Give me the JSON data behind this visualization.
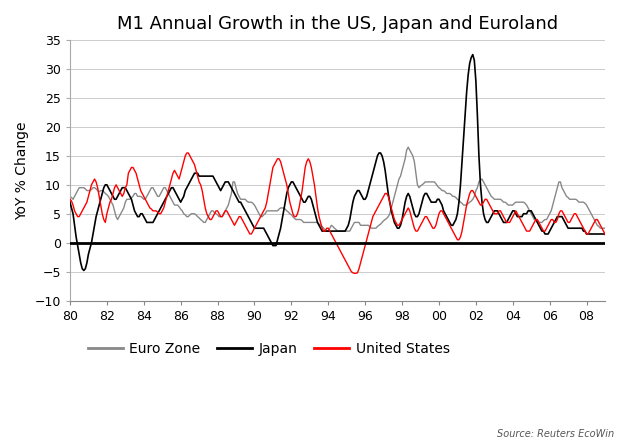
{
  "title": "M1 Annual Growth in the US, Japan and Euroland",
  "ylabel": "YoY % Change",
  "source": "Source: Reuters EcoWin",
  "xlim": [
    1980,
    2009
  ],
  "ylim": [
    -10,
    35
  ],
  "yticks": [
    -10,
    -5,
    0,
    5,
    10,
    15,
    20,
    25,
    30,
    35
  ],
  "xtick_positions": [
    1980,
    1982,
    1984,
    1986,
    1988,
    1990,
    1992,
    1994,
    1996,
    1998,
    2000,
    2002,
    2004,
    2006,
    2008
  ],
  "xtick_labels": [
    "80",
    "82",
    "84",
    "86",
    "88",
    "90",
    "92",
    "94",
    "96",
    "98",
    "00",
    "02",
    "04",
    "06",
    "08"
  ],
  "legend_entries": [
    "Euro Zone",
    "Japan",
    "United States"
  ],
  "legend_colors": [
    "#888888",
    "#000000",
    "#ff0000"
  ],
  "background_color": "#ffffff",
  "grid_color": "#cccccc",
  "title_fontsize": 13,
  "label_fontsize": 10,
  "tick_fontsize": 9,
  "legend_fontsize": 10,
  "us_y": [
    7.5,
    7.2,
    6.5,
    5.5,
    5.0,
    4.5,
    4.5,
    5.0,
    5.5,
    6.0,
    6.5,
    7.0,
    8.0,
    9.0,
    10.0,
    10.5,
    11.0,
    10.5,
    9.5,
    8.0,
    6.5,
    5.0,
    4.0,
    3.5,
    5.0,
    6.0,
    7.0,
    7.5,
    8.5,
    9.5,
    10.0,
    9.5,
    9.0,
    8.5,
    8.0,
    8.5,
    9.5,
    10.0,
    12.0,
    12.5,
    13.0,
    13.0,
    12.5,
    12.0,
    11.0,
    10.0,
    9.0,
    8.5,
    8.0,
    7.5,
    7.0,
    6.5,
    6.0,
    5.8,
    5.5,
    5.5,
    5.5,
    5.3,
    5.0,
    5.0,
    5.5,
    6.0,
    7.0,
    8.0,
    9.0,
    10.0,
    11.0,
    12.0,
    12.5,
    12.0,
    11.5,
    11.0,
    12.0,
    13.0,
    14.0,
    15.0,
    15.5,
    15.5,
    15.0,
    14.5,
    14.0,
    13.5,
    12.5,
    11.5,
    10.5,
    10.0,
    9.0,
    7.5,
    6.0,
    5.0,
    4.5,
    4.0,
    4.0,
    4.5,
    5.0,
    5.5,
    5.5,
    5.0,
    4.5,
    4.5,
    5.0,
    5.5,
    5.5,
    5.0,
    4.5,
    4.0,
    3.5,
    3.0,
    3.5,
    4.0,
    4.5,
    4.5,
    4.0,
    3.5,
    3.0,
    2.5,
    2.0,
    1.5,
    1.5,
    2.0,
    2.5,
    3.0,
    3.5,
    4.0,
    4.5,
    5.0,
    5.5,
    6.0,
    7.0,
    8.5,
    10.0,
    11.5,
    13.0,
    13.5,
    14.0,
    14.5,
    14.5,
    14.0,
    13.0,
    12.0,
    11.0,
    10.0,
    8.5,
    7.0,
    6.0,
    5.0,
    4.5,
    4.5,
    5.0,
    6.0,
    7.5,
    9.0,
    11.0,
    13.0,
    14.0,
    14.5,
    14.0,
    13.0,
    11.5,
    10.0,
    8.0,
    6.0,
    4.5,
    3.5,
    2.5,
    2.0,
    2.0,
    2.5,
    2.5,
    2.0,
    1.5,
    1.0,
    0.5,
    0.0,
    -0.5,
    -1.0,
    -1.5,
    -2.0,
    -2.5,
    -3.0,
    -3.5,
    -4.0,
    -4.5,
    -5.0,
    -5.2,
    -5.3,
    -5.3,
    -5.2,
    -4.5,
    -3.5,
    -2.5,
    -1.5,
    -0.5,
    0.5,
    1.5,
    2.5,
    3.5,
    4.5,
    5.0,
    5.5,
    6.0,
    6.5,
    7.0,
    7.5,
    8.0,
    8.5,
    8.5,
    8.0,
    7.0,
    6.0,
    5.0,
    4.0,
    3.5,
    3.0,
    3.0,
    3.5,
    4.0,
    4.5,
    5.0,
    5.5,
    6.0,
    5.5,
    4.5,
    3.5,
    2.5,
    2.0,
    2.0,
    2.5,
    3.0,
    3.5,
    4.0,
    4.5,
    4.5,
    4.0,
    3.5,
    3.0,
    2.5,
    2.5,
    3.0,
    4.0,
    5.0,
    5.5,
    5.5,
    5.0,
    4.5,
    4.0,
    3.5,
    3.0,
    2.5,
    2.0,
    1.5,
    1.0,
    0.5,
    0.5,
    1.0,
    2.0,
    3.5,
    5.0,
    6.5,
    7.5,
    8.5,
    9.0,
    9.0,
    8.5,
    8.0,
    7.5,
    7.0,
    6.5,
    6.5,
    7.0,
    7.5,
    7.5,
    7.0,
    6.5,
    6.0,
    5.5,
    5.0,
    5.0,
    5.0,
    5.5,
    5.5,
    5.0,
    4.5,
    4.0,
    3.5,
    3.5,
    3.5,
    4.0,
    4.5,
    5.0,
    5.5,
    5.0,
    4.5,
    4.0,
    3.5,
    3.0,
    2.5,
    2.0,
    2.0,
    2.0,
    2.5,
    3.0,
    3.5,
    4.0,
    4.0,
    3.5,
    3.0,
    2.5,
    2.0,
    2.0,
    2.5,
    3.0,
    3.5,
    4.0,
    4.0,
    3.5,
    3.5,
    4.0,
    5.0,
    5.5,
    5.5,
    5.0,
    4.5,
    4.0,
    3.5,
    3.5,
    4.0,
    4.5,
    5.0,
    5.0,
    4.5,
    4.0,
    3.5,
    3.0,
    2.5,
    2.0,
    1.5,
    1.5,
    2.0,
    2.5,
    3.0,
    3.5,
    4.0,
    4.0,
    3.5,
    3.0,
    2.5,
    2.0,
    1.5,
    1.0,
    0.5,
    0.0,
    -0.5,
    -0.5,
    -0.5,
    0.0,
    0.5,
    1.0,
    1.5,
    2.0
  ],
  "jp_y": [
    7.0,
    6.0,
    5.0,
    3.0,
    1.0,
    -0.5,
    -2.0,
    -3.5,
    -4.5,
    -4.8,
    -4.5,
    -3.5,
    -2.0,
    -1.0,
    0.0,
    1.5,
    3.0,
    4.5,
    5.5,
    6.5,
    7.5,
    8.5,
    9.5,
    10.0,
    10.0,
    9.5,
    9.0,
    8.5,
    8.0,
    7.5,
    7.5,
    8.0,
    8.5,
    9.0,
    9.5,
    9.5,
    9.5,
    9.0,
    8.5,
    8.0,
    7.5,
    6.5,
    5.5,
    5.0,
    4.5,
    4.5,
    5.0,
    5.0,
    4.5,
    4.0,
    3.5,
    3.5,
    3.5,
    3.5,
    3.5,
    4.0,
    4.5,
    5.0,
    5.5,
    6.0,
    6.5,
    7.0,
    7.5,
    8.0,
    8.5,
    9.0,
    9.5,
    9.5,
    9.0,
    8.5,
    8.0,
    7.5,
    7.0,
    7.5,
    8.0,
    9.0,
    9.5,
    10.0,
    10.5,
    11.0,
    11.5,
    12.0,
    12.0,
    12.0,
    11.5,
    11.5,
    11.5,
    11.5,
    11.5,
    11.5,
    11.5,
    11.5,
    11.5,
    11.5,
    11.0,
    10.5,
    10.0,
    9.5,
    9.0,
    9.5,
    10.0,
    10.5,
    10.5,
    10.5,
    10.0,
    9.5,
    9.0,
    8.5,
    8.0,
    7.5,
    7.0,
    7.0,
    6.5,
    6.0,
    5.5,
    5.0,
    4.5,
    4.0,
    3.5,
    3.0,
    2.5,
    2.5,
    2.5,
    2.5,
    2.5,
    2.5,
    2.5,
    2.0,
    1.5,
    1.0,
    0.5,
    0.0,
    -0.5,
    -0.5,
    -0.5,
    0.5,
    1.5,
    2.5,
    4.0,
    5.5,
    7.0,
    8.5,
    9.5,
    10.0,
    10.5,
    10.5,
    10.0,
    9.5,
    9.0,
    8.5,
    8.0,
    7.5,
    7.0,
    7.0,
    7.5,
    8.0,
    8.0,
    7.5,
    6.5,
    5.5,
    4.5,
    3.5,
    3.0,
    2.5,
    2.0,
    2.0,
    2.0,
    2.0,
    2.0,
    2.0,
    2.0,
    2.0,
    2.0,
    2.0,
    2.0,
    2.0,
    2.0,
    2.0,
    2.0,
    2.0,
    2.5,
    3.0,
    4.0,
    5.5,
    7.0,
    8.0,
    8.5,
    9.0,
    9.0,
    8.5,
    8.0,
    7.5,
    7.5,
    8.0,
    9.0,
    10.0,
    11.0,
    12.0,
    13.0,
    14.0,
    15.0,
    15.5,
    15.5,
    15.0,
    14.0,
    12.5,
    10.5,
    8.5,
    7.0,
    5.5,
    4.5,
    3.5,
    3.0,
    2.5,
    2.5,
    3.0,
    4.0,
    5.5,
    7.0,
    8.0,
    8.5,
    8.0,
    7.0,
    6.0,
    5.0,
    4.5,
    4.5,
    5.0,
    6.0,
    7.0,
    8.0,
    8.5,
    8.5,
    8.0,
    7.5,
    7.0,
    7.0,
    7.0,
    7.0,
    7.5,
    7.5,
    7.0,
    6.5,
    5.5,
    5.0,
    4.5,
    4.0,
    3.5,
    3.0,
    3.0,
    3.5,
    4.0,
    5.0,
    7.0,
    10.0,
    14.0,
    18.0,
    22.0,
    26.0,
    29.0,
    31.0,
    32.0,
    32.5,
    31.5,
    28.0,
    22.0,
    15.0,
    10.0,
    7.0,
    5.0,
    4.0,
    3.5,
    3.5,
    4.0,
    4.5,
    5.0,
    5.5,
    5.5,
    5.5,
    5.0,
    4.5,
    4.0,
    3.5,
    3.5,
    3.5,
    4.0,
    4.5,
    5.0,
    5.5,
    5.5,
    5.0,
    4.5,
    4.5,
    4.5,
    4.5,
    5.0,
    5.0,
    5.0,
    5.5,
    5.5,
    5.5,
    5.0,
    4.5,
    4.0,
    3.5,
    3.0,
    2.5,
    2.0,
    2.0,
    1.5,
    1.5,
    1.5,
    2.0,
    2.5,
    3.0,
    3.5,
    4.0,
    4.5,
    4.5,
    4.5,
    4.5,
    4.0,
    3.5,
    3.0,
    2.5,
    2.5,
    2.5,
    2.5,
    2.5,
    2.5,
    2.5,
    2.5,
    2.5,
    2.5,
    2.0,
    2.0,
    1.5,
    1.5,
    1.5,
    1.5,
    1.5,
    1.5,
    1.5,
    1.5,
    1.5,
    1.5,
    1.5,
    1.5,
    1.5,
    1.0,
    0.5,
    0.0,
    -0.5,
    -0.5,
    -0.5,
    -0.5,
    -0.5,
    -0.5,
    -1.0,
    -1.5
  ],
  "ez_y": [
    8.0,
    7.8,
    7.5,
    8.0,
    8.5,
    9.0,
    9.5,
    9.5,
    9.5,
    9.5,
    9.3,
    9.0,
    9.0,
    9.0,
    9.2,
    9.5,
    9.5,
    9.3,
    9.0,
    8.8,
    9.0,
    9.0,
    8.8,
    8.5,
    8.3,
    8.0,
    7.5,
    7.0,
    6.5,
    5.5,
    4.5,
    4.0,
    4.5,
    5.0,
    5.5,
    6.0,
    7.0,
    7.5,
    7.5,
    7.5,
    7.8,
    8.0,
    8.5,
    8.5,
    8.0,
    8.0,
    8.0,
    7.8,
    7.5,
    7.5,
    8.0,
    8.5,
    9.0,
    9.5,
    9.5,
    9.0,
    8.5,
    8.0,
    8.0,
    8.5,
    9.0,
    9.5,
    9.5,
    9.0,
    8.5,
    8.0,
    7.5,
    7.0,
    6.5,
    6.5,
    6.5,
    6.2,
    5.8,
    5.5,
    5.0,
    4.8,
    4.5,
    4.5,
    4.8,
    5.0,
    5.0,
    5.0,
    4.8,
    4.5,
    4.3,
    4.0,
    3.8,
    3.5,
    3.5,
    4.0,
    4.5,
    5.0,
    5.5,
    5.5,
    5.2,
    5.0,
    4.8,
    4.5,
    4.5,
    4.5,
    5.0,
    5.5,
    6.0,
    6.5,
    7.5,
    8.5,
    10.5,
    10.5,
    9.5,
    8.5,
    8.0,
    7.5,
    7.5,
    7.5,
    7.5,
    7.2,
    7.0,
    7.0,
    7.0,
    6.8,
    6.5,
    6.0,
    5.5,
    5.0,
    4.5,
    4.5,
    4.8,
    5.0,
    5.5,
    5.5,
    5.5,
    5.5,
    5.5,
    5.5,
    5.5,
    5.5,
    5.8,
    6.0,
    6.0,
    6.0,
    5.8,
    5.5,
    5.3,
    5.0,
    4.8,
    4.5,
    4.2,
    4.0,
    4.0,
    4.0,
    4.0,
    3.8,
    3.5,
    3.5,
    3.5,
    3.5,
    3.5,
    3.5,
    3.5,
    3.5,
    3.5,
    3.5,
    3.2,
    3.0,
    2.8,
    2.5,
    2.2,
    2.0,
    2.0,
    2.5,
    3.0,
    2.8,
    2.5,
    2.3,
    2.0,
    2.0,
    2.0,
    2.0,
    2.0,
    2.0,
    2.0,
    2.0,
    2.0,
    2.5,
    3.0,
    3.5,
    3.5,
    3.5,
    3.5,
    3.0,
    3.0,
    3.0,
    3.0,
    3.0,
    3.0,
    2.8,
    2.5,
    2.5,
    2.5,
    2.5,
    2.8,
    3.0,
    3.2,
    3.5,
    3.8,
    4.0,
    4.2,
    4.5,
    5.0,
    6.0,
    7.0,
    8.0,
    9.0,
    10.0,
    11.0,
    11.5,
    12.5,
    13.5,
    14.5,
    16.0,
    16.5,
    16.0,
    15.5,
    15.0,
    14.0,
    12.0,
    10.0,
    9.5,
    9.8,
    10.0,
    10.2,
    10.5,
    10.5,
    10.5,
    10.5,
    10.5,
    10.5,
    10.5,
    10.2,
    9.8,
    9.5,
    9.3,
    9.0,
    9.0,
    8.8,
    8.5,
    8.5,
    8.5,
    8.3,
    8.0,
    8.0,
    7.8,
    7.5,
    7.3,
    7.0,
    6.8,
    6.5,
    6.5,
    6.5,
    6.8,
    7.0,
    7.2,
    7.5,
    8.0,
    9.0,
    9.5,
    10.5,
    10.8,
    11.0,
    10.5,
    10.0,
    9.5,
    9.0,
    8.5,
    8.0,
    7.8,
    7.5,
    7.5,
    7.5,
    7.5,
    7.5,
    7.3,
    7.0,
    7.0,
    6.8,
    6.5,
    6.5,
    6.5,
    6.5,
    6.8,
    7.0,
    7.0,
    7.0,
    7.0,
    7.0,
    7.0,
    6.8,
    6.5,
    6.0,
    5.5,
    5.0,
    4.5,
    4.0,
    4.0,
    3.8,
    3.5,
    3.5,
    3.5,
    3.8,
    4.0,
    4.0,
    4.5,
    5.0,
    5.5,
    6.5,
    7.5,
    8.5,
    9.5,
    10.5,
    10.5,
    9.5,
    9.0,
    8.5,
    8.0,
    7.8,
    7.5,
    7.5,
    7.5,
    7.5,
    7.5,
    7.3,
    7.0,
    7.0,
    7.0,
    7.0,
    6.8,
    6.5,
    6.0,
    5.5,
    5.0,
    4.5,
    4.0,
    3.5,
    3.0,
    2.8,
    2.5,
    2.5,
    2.5,
    2.5,
    2.5,
    2.5,
    2.5,
    2.5,
    2.5,
    2.5,
    2.5,
    2.5,
    2.5,
    2.5,
    2.5
  ]
}
